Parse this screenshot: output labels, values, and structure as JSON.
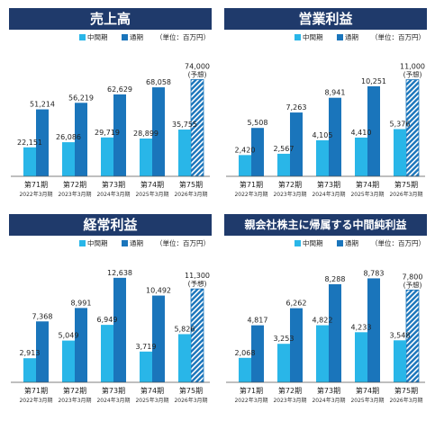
{
  "legend": {
    "interim": "中間期",
    "annual": "通期",
    "unit": "（単位：百万円）"
  },
  "colors": {
    "interim": "#29b6e8",
    "annual": "#1a75bb",
    "title_bg": "#1f3a6b",
    "axis": "#555555"
  },
  "chart_data": [
    {
      "type": "bar",
      "title": "売上高",
      "categories": [
        "第71期",
        "第72期",
        "第73期",
        "第74期",
        "第75期"
      ],
      "sublabels": [
        "2022年3月期",
        "2023年3月期",
        "2024年3月期",
        "2025年3月期",
        "2026年3月期"
      ],
      "series": [
        {
          "name": "中間期",
          "values": [
            22151,
            26086,
            29719,
            28899,
            35755
          ],
          "labels": [
            "22,151",
            "26,086",
            "29,719",
            "28,899",
            "35,755"
          ]
        },
        {
          "name": "通期",
          "values": [
            51214,
            56219,
            62629,
            68058,
            74000
          ],
          "labels": [
            "51,214",
            "56,219",
            "62,629",
            "68,058",
            "74,000"
          ]
        }
      ],
      "forecast_index": 4,
      "forecast_label": "(予想)",
      "ylim": [
        0,
        86000
      ]
    },
    {
      "type": "bar",
      "title": "営業利益",
      "categories": [
        "第71期",
        "第72期",
        "第73期",
        "第74期",
        "第75期"
      ],
      "sublabels": [
        "2022年3月期",
        "2023年3月期",
        "2024年3月期",
        "2025年3月期",
        "2026年3月期"
      ],
      "series": [
        {
          "name": "中間期",
          "values": [
            2420,
            2567,
            4105,
            4410,
            5376
          ],
          "labels": [
            "2,420",
            "2,567",
            "4,105",
            "4,410",
            "5,376"
          ]
        },
        {
          "name": "通期",
          "values": [
            5508,
            7263,
            8941,
            10251,
            11000
          ],
          "labels": [
            "5,508",
            "7,263",
            "8,941",
            "10,251",
            "11,000"
          ]
        }
      ],
      "forecast_index": 4,
      "forecast_label": "(予想)",
      "ylim": [
        0,
        12800
      ]
    },
    {
      "type": "bar",
      "title": "経常利益",
      "categories": [
        "第71期",
        "第72期",
        "第73期",
        "第74期",
        "第75期"
      ],
      "sublabels": [
        "2022年3月期",
        "2023年3月期",
        "2024年3月期",
        "2025年3月期",
        "2026年3月期"
      ],
      "series": [
        {
          "name": "中間期",
          "values": [
            2913,
            5049,
            6949,
            3719,
            5826
          ],
          "labels": [
            "2,913",
            "5,049",
            "6,949",
            "3,719",
            "5,826"
          ]
        },
        {
          "name": "通期",
          "values": [
            7368,
            8991,
            12638,
            10492,
            11300
          ],
          "labels": [
            "7,368",
            "8,991",
            "12,638",
            "10,492",
            "11,300"
          ]
        }
      ],
      "forecast_index": 4,
      "forecast_label": "(予想)",
      "ylim": [
        0,
        13600
      ]
    },
    {
      "type": "bar",
      "title": "親会社株主に帰属する中間純利益",
      "categories": [
        "第71期",
        "第72期",
        "第73期",
        "第74期",
        "第75期"
      ],
      "sublabels": [
        "2022年3月期",
        "2023年3月期",
        "2024年3月期",
        "2025年3月期",
        "2026年3月期"
      ],
      "series": [
        {
          "name": "中間期",
          "values": [
            2068,
            3253,
            4822,
            4233,
            3548
          ],
          "labels": [
            "2,068",
            "3,253",
            "4,822",
            "4,233",
            "3,548"
          ]
        },
        {
          "name": "通期",
          "values": [
            4817,
            6262,
            8288,
            8783,
            7800
          ],
          "labels": [
            "4,817",
            "6,262",
            "8,288",
            "8,783",
            "7,800"
          ]
        }
      ],
      "forecast_index": 4,
      "forecast_label": "(予想)",
      "ylim": [
        0,
        9500
      ]
    }
  ]
}
